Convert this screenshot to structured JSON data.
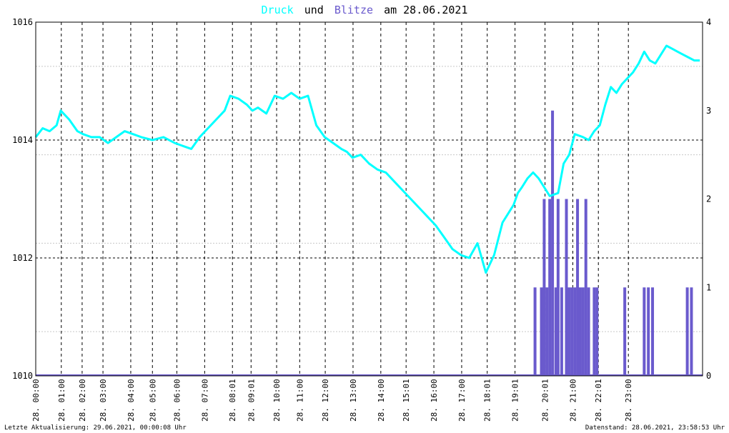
{
  "title": {
    "word1": "Druck",
    "word2": "und",
    "word3": "Blitze",
    "word4": "am 28.06.2021"
  },
  "colors": {
    "pressure": "#00ffff",
    "lightning": "#6a5acd",
    "title_text": "#000000",
    "grid_major": "#000000",
    "grid_minor": "#c8c8c8",
    "frame": "#000000",
    "background": "#ffffff"
  },
  "footer": {
    "left": "Letzte Aktualisierung: 29.06.2021, 00:00:08 Uhr",
    "right": "Datenstand: 28.06.2021, 23:58:53 Uhr"
  },
  "chart_data": {
    "type": "line",
    "title": "Druck und Blitze am 28.06.2021",
    "x_ticks": [
      "28. 00:00",
      "28. 01:00",
      "28. 02:00",
      "28. 03:00",
      "28. 04:00",
      "28. 05:00",
      "28. 06:00",
      "28. 07:00",
      "28. 08:01",
      "28. 09:01",
      "28. 10:00",
      "28. 11:00",
      "28. 12:00",
      "28. 13:00",
      "28. 14:00",
      "28. 15:01",
      "28. 16:00",
      "28. 17:00",
      "28. 18:01",
      "28. 19:01",
      "28. 20:01",
      "28. 21:00",
      "28. 22:01",
      "28. 23:00"
    ],
    "tick_hours": [
      0,
      0.92,
      1.67,
      2.42,
      3.42,
      4.2,
      5.08,
      6.08,
      7.08,
      7.75,
      8.67,
      9.5,
      10.42,
      11.42,
      12.42,
      13.33,
      14.33,
      15.33,
      16.25,
      17.25,
      18.33,
      19.33,
      20.25,
      21.33
    ],
    "xlim_hours": [
      0,
      24
    ],
    "y_left": {
      "ylim": [
        1010,
        1016
      ],
      "ticks": [
        1010,
        1012,
        1014,
        1016
      ]
    },
    "y_right": {
      "ylim": [
        0,
        4
      ],
      "ticks": [
        0,
        1,
        2,
        3,
        4
      ]
    },
    "grid": true,
    "series": [
      {
        "name": "Druck",
        "axis": "left",
        "x_hours": [
          0,
          0.25,
          0.5,
          0.75,
          0.9,
          1.2,
          1.5,
          1.7,
          2.0,
          2.3,
          2.6,
          2.9,
          3.2,
          3.5,
          3.8,
          4.2,
          4.6,
          5.0,
          5.3,
          5.6,
          5.9,
          6.2,
          6.5,
          6.8,
          7.0,
          7.3,
          7.6,
          7.8,
          8.0,
          8.3,
          8.6,
          8.9,
          9.2,
          9.5,
          9.8,
          10.1,
          10.4,
          10.7,
          11.0,
          11.2,
          11.4,
          11.7,
          12.0,
          12.3,
          12.6,
          12.9,
          13.2,
          13.5,
          13.8,
          14.1,
          14.4,
          14.7,
          15.0,
          15.3,
          15.6,
          15.9,
          16.2,
          16.5,
          16.8,
          17.0,
          17.2,
          17.35,
          17.5,
          17.7,
          17.9,
          18.1,
          18.3,
          18.5,
          18.8,
          19.0,
          19.2,
          19.4,
          19.7,
          19.9,
          20.1,
          20.3,
          20.5,
          20.7,
          20.9,
          21.1,
          21.3,
          21.5,
          21.7,
          21.9,
          22.1,
          22.3,
          22.5,
          22.7,
          22.9,
          23.1,
          23.3,
          23.5,
          23.7,
          23.9
        ],
        "values": [
          1014.05,
          1014.2,
          1014.15,
          1014.25,
          1014.5,
          1014.35,
          1014.15,
          1014.1,
          1014.05,
          1014.05,
          1013.95,
          1014.05,
          1014.15,
          1014.1,
          1014.05,
          1014.0,
          1014.05,
          1013.95,
          1013.9,
          1013.85,
          1014.05,
          1014.2,
          1014.35,
          1014.5,
          1014.75,
          1014.7,
          1014.6,
          1014.5,
          1014.55,
          1014.45,
          1014.75,
          1014.7,
          1014.8,
          1014.7,
          1014.75,
          1014.25,
          1014.05,
          1013.95,
          1013.85,
          1013.8,
          1013.7,
          1013.75,
          1013.6,
          1013.5,
          1013.45,
          1013.3,
          1013.15,
          1013.0,
          1012.85,
          1012.7,
          1012.55,
          1012.35,
          1012.15,
          1012.05,
          1012.0,
          1012.25,
          1011.75,
          1012.05,
          1012.6,
          1012.75,
          1012.9,
          1013.1,
          1013.2,
          1013.35,
          1013.45,
          1013.35,
          1013.2,
          1013.05,
          1013.1,
          1013.6,
          1013.75,
          1014.1,
          1014.05,
          1014.0,
          1014.15,
          1014.25,
          1014.6,
          1014.9,
          1014.8,
          1014.95,
          1015.05,
          1015.15,
          1015.3,
          1015.5,
          1015.35,
          1015.3,
          1015.45,
          1015.6,
          1015.55,
          1015.5,
          1015.45,
          1015.4,
          1015.35,
          1015.35
        ]
      },
      {
        "name": "Blitze",
        "axis": "right",
        "type": "bar",
        "x_hours": [
          17.97,
          18.2,
          18.3,
          18.4,
          18.5,
          18.6,
          18.72,
          18.8,
          18.93,
          19.1,
          19.2,
          19.3,
          19.4,
          19.5,
          19.6,
          19.7,
          19.8,
          19.9,
          20.1,
          20.2,
          21.2,
          21.9,
          22.05,
          22.2,
          23.45,
          23.6
        ],
        "values": [
          1,
          1,
          2,
          1,
          2,
          3,
          1,
          2,
          1,
          2,
          1,
          1,
          1,
          2,
          1,
          1,
          2,
          1,
          1,
          1,
          1,
          1,
          1,
          1,
          1,
          1
        ]
      }
    ]
  }
}
